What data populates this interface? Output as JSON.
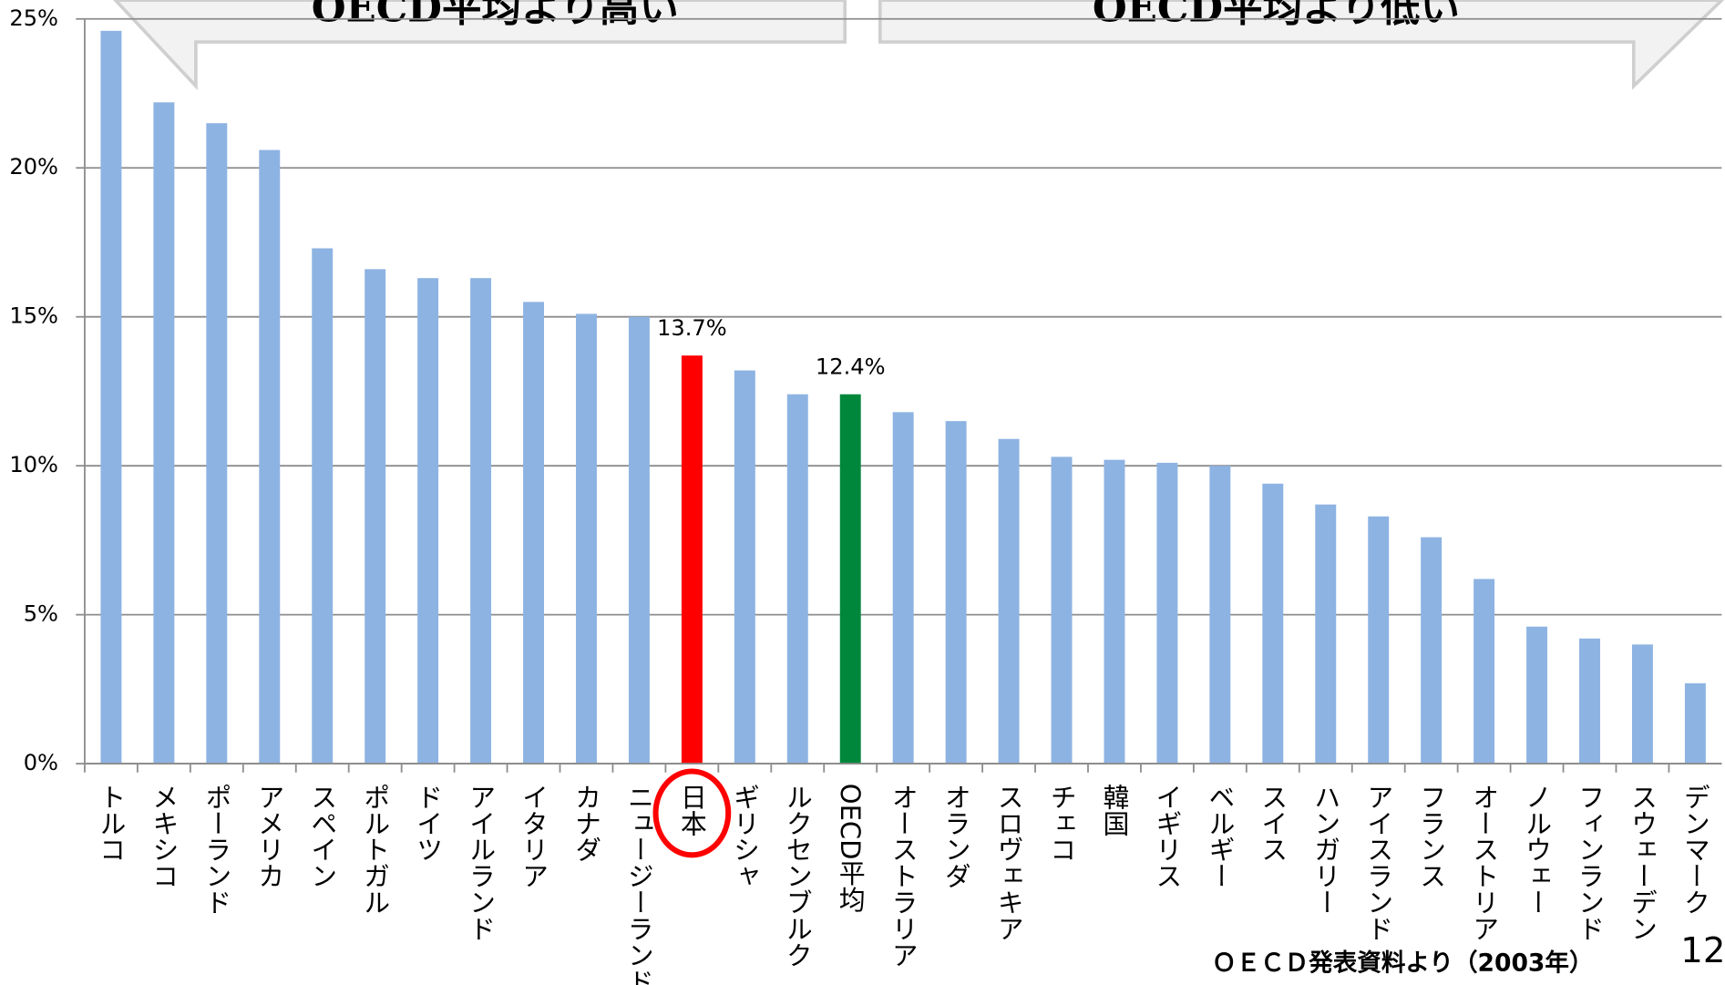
{
  "chart_data": {
    "type": "bar",
    "categories": [
      "トルコ",
      "メキシコ",
      "ポーランド",
      "アメリカ",
      "スペイン",
      "ポルトガル",
      "ドイツ",
      "アイルランド",
      "イタリア",
      "カナダ",
      "ニュージーランド",
      "日本",
      "ギリシャ",
      "ルクセンブルク",
      "OECD平均",
      "オーストラリア",
      "オランダ",
      "スロヴェキア",
      "チェコ",
      "韓国",
      "イギリス",
      "ベルギー",
      "スイス",
      "ハンガリー",
      "アイスランド",
      "フランス",
      "オーストリア",
      "ノルウェー",
      "フィンランド",
      "スウェーデン",
      "デンマーク"
    ],
    "values": [
      24.6,
      22.2,
      21.5,
      20.6,
      17.3,
      16.6,
      16.3,
      16.3,
      15.5,
      15.1,
      15.0,
      13.7,
      13.2,
      12.4,
      12.4,
      11.8,
      11.5,
      10.9,
      10.3,
      10.2,
      10.1,
      10.0,
      9.4,
      8.7,
      8.3,
      7.6,
      6.2,
      4.6,
      4.2,
      4.0,
      2.7
    ],
    "value_labels": [
      null,
      null,
      null,
      null,
      null,
      null,
      null,
      null,
      null,
      null,
      null,
      "13.7%",
      null,
      null,
      "12.4%",
      null,
      null,
      null,
      null,
      null,
      null,
      null,
      null,
      null,
      null,
      null,
      null,
      null,
      null,
      null,
      null
    ],
    "colors": [
      "#8db3e2",
      "#8db3e2",
      "#8db3e2",
      "#8db3e2",
      "#8db3e2",
      "#8db3e2",
      "#8db3e2",
      "#8db3e2",
      "#8db3e2",
      "#8db3e2",
      "#8db3e2",
      "#ff0000",
      "#8db3e2",
      "#8db3e2",
      "#00873c",
      "#8db3e2",
      "#8db3e2",
      "#8db3e2",
      "#8db3e2",
      "#8db3e2",
      "#8db3e2",
      "#8db3e2",
      "#8db3e2",
      "#8db3e2",
      "#8db3e2",
      "#8db3e2",
      "#8db3e2",
      "#8db3e2",
      "#8db3e2",
      "#8db3e2",
      "#8db3e2"
    ],
    "ylim": [
      0,
      25
    ],
    "yticks": [
      {
        "value": 0,
        "label": "0%"
      },
      {
        "value": 5,
        "label": "5%"
      },
      {
        "value": 10,
        "label": "10%"
      },
      {
        "value": 15,
        "label": "15%"
      },
      {
        "value": 20,
        "label": "20%"
      },
      {
        "value": 25,
        "label": "25%"
      }
    ],
    "grid": true,
    "annotations": [
      "OECD平均より高い",
      "OECD平均より低い"
    ],
    "source": "ＯＥＣＤ発表資料より（2003年）",
    "page_number": "12"
  }
}
